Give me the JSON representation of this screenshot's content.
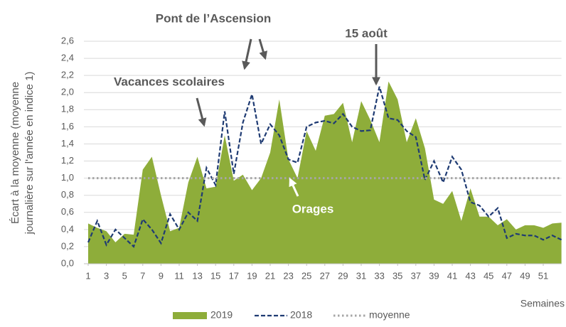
{
  "chart_data": {
    "type": "area-line",
    "y_label_lines": [
      "Écart à la moyenne (moyenne",
      "journalière sur l'année en indice 1)"
    ],
    "x_label": "Semaines",
    "x": [
      1,
      2,
      3,
      4,
      5,
      6,
      7,
      8,
      9,
      10,
      11,
      12,
      13,
      14,
      15,
      16,
      17,
      18,
      19,
      20,
      21,
      22,
      23,
      24,
      25,
      26,
      27,
      28,
      29,
      30,
      31,
      32,
      33,
      34,
      35,
      36,
      37,
      38,
      39,
      40,
      41,
      42,
      43,
      44,
      45,
      46,
      47,
      48,
      49,
      50,
      51,
      52,
      53
    ],
    "xlim": [
      1,
      53
    ],
    "xticks": [
      1,
      3,
      5,
      7,
      9,
      11,
      13,
      15,
      17,
      19,
      21,
      23,
      25,
      27,
      29,
      31,
      33,
      35,
      37,
      39,
      41,
      43,
      45,
      47,
      49,
      51
    ],
    "ylim": [
      0,
      2.6
    ],
    "yticks": [
      {
        "value": 0,
        "label": "0,0"
      },
      {
        "value": 0.2,
        "label": "0,2"
      },
      {
        "value": 0.4,
        "label": "0,4"
      },
      {
        "value": 0.6,
        "label": "0,6"
      },
      {
        "value": 0.8,
        "label": "0,8"
      },
      {
        "value": 1,
        "label": "1,0"
      },
      {
        "value": 1.2,
        "label": "1,2"
      },
      {
        "value": 1.4,
        "label": "1,4"
      },
      {
        "value": 1.6,
        "label": "1,6"
      },
      {
        "value": 1.8,
        "label": "1,8"
      },
      {
        "value": 2,
        "label": "2,0"
      },
      {
        "value": 2.2,
        "label": "2,2"
      },
      {
        "value": 2.4,
        "label": "2,4"
      },
      {
        "value": 2.6,
        "label": "2,6"
      }
    ],
    "series": [
      {
        "name": "2019",
        "kind": "area",
        "color": "#8ead3a",
        "values": [
          0.47,
          0.42,
          0.38,
          0.25,
          0.35,
          0.34,
          1.1,
          1.25,
          0.8,
          0.38,
          0.42,
          0.95,
          1.25,
          0.88,
          0.9,
          1.5,
          0.97,
          1.04,
          0.86,
          1.0,
          1.3,
          1.92,
          1.22,
          1.0,
          1.55,
          1.32,
          1.73,
          1.75,
          1.88,
          1.42,
          1.9,
          1.68,
          1.42,
          2.13,
          1.92,
          1.42,
          1.7,
          1.35,
          0.75,
          0.7,
          0.85,
          0.5,
          0.88,
          0.55,
          0.55,
          0.45,
          0.52,
          0.4,
          0.45,
          0.45,
          0.42,
          0.47,
          0.48
        ]
      },
      {
        "name": "2018",
        "kind": "dashed",
        "color": "#1f3b73",
        "values": [
          0.25,
          0.5,
          0.22,
          0.4,
          0.3,
          0.2,
          0.52,
          0.4,
          0.24,
          0.58,
          0.4,
          0.6,
          0.5,
          1.12,
          0.92,
          1.78,
          1.05,
          1.65,
          1.98,
          1.4,
          1.63,
          1.5,
          1.22,
          1.18,
          1.6,
          1.65,
          1.67,
          1.64,
          1.75,
          1.6,
          1.55,
          1.56,
          2.07,
          1.7,
          1.68,
          1.55,
          1.48,
          0.98,
          1.2,
          0.95,
          1.25,
          1.1,
          0.72,
          0.68,
          0.55,
          0.65,
          0.3,
          0.35,
          0.33,
          0.33,
          0.28,
          0.33,
          0.28
        ]
      }
    ],
    "reference_line": {
      "name": "moyenne",
      "value": 1,
      "color": "#a6a6a6"
    },
    "annotations": [
      {
        "text": "Pont de l’Ascension"
      },
      {
        "text": "15 août"
      },
      {
        "text": "Vacances scolaires"
      },
      {
        "text": "Orages"
      }
    ]
  }
}
